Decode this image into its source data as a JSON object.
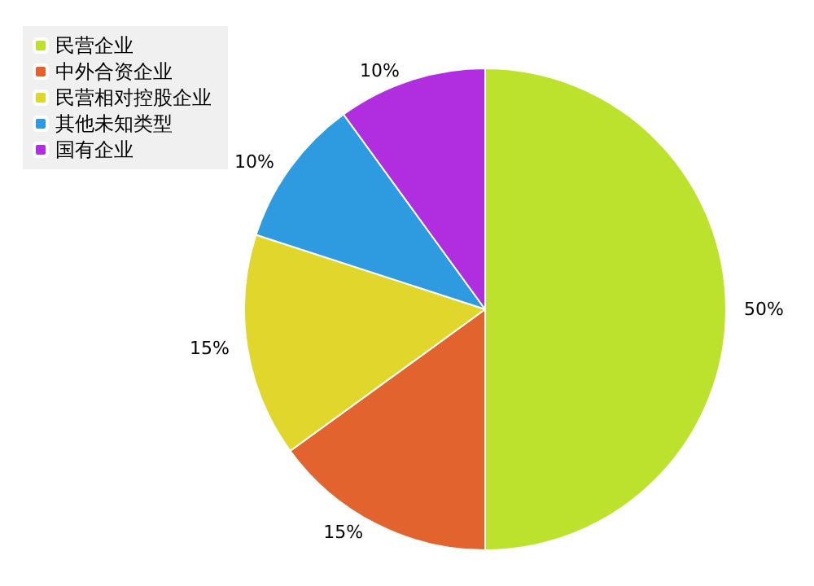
{
  "chart_data": {
    "type": "pie",
    "categories": [
      "民营企业",
      "中外合资企业",
      "民营相对控股企业",
      "其他未知类型",
      "国有企业"
    ],
    "values": [
      50,
      15,
      15,
      10,
      10
    ],
    "colors": [
      "#bde22e",
      "#e2632d",
      "#e0d62c",
      "#2e9be0",
      "#b02ee0"
    ],
    "value_labels": [
      "50%",
      "15%",
      "15%",
      "10%",
      "10%"
    ],
    "legend": "top left"
  }
}
